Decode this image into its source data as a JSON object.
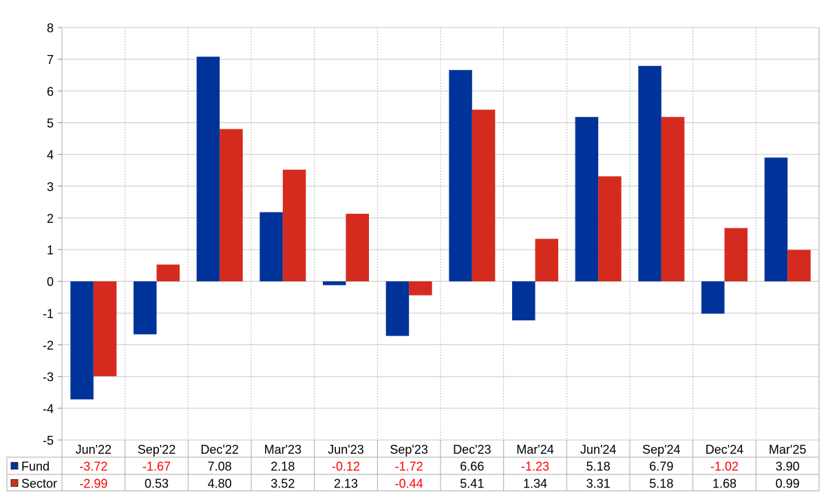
{
  "chart_data": {
    "type": "bar",
    "categories": [
      "Jun'22",
      "Sep'22",
      "Dec'22",
      "Mar'23",
      "Jun'23",
      "Sep'23",
      "Dec'23",
      "Mar'24",
      "Jun'24",
      "Sep'24",
      "Dec'24",
      "Mar'25"
    ],
    "series": [
      {
        "name": "Fund",
        "color": "#003399",
        "values": [
          -3.72,
          -1.67,
          7.08,
          2.18,
          -0.12,
          -1.72,
          6.66,
          -1.23,
          5.18,
          6.79,
          -1.02,
          3.9
        ],
        "labels": [
          "-3.72",
          "-1.67",
          "7.08",
          "2.18",
          "-0.12",
          "-1.72",
          "6.66",
          "-1.23",
          "5.18",
          "6.79",
          "-1.02",
          "3.90"
        ]
      },
      {
        "name": "Sector",
        "color": "#d52b1e",
        "values": [
          -2.99,
          0.53,
          4.8,
          3.52,
          2.13,
          -0.44,
          5.41,
          1.34,
          3.31,
          5.18,
          1.68,
          0.99
        ],
        "labels": [
          "-2.99",
          "0.53",
          "4.80",
          "3.52",
          "2.13",
          "-0.44",
          "5.41",
          "1.34",
          "3.31",
          "5.18",
          "1.68",
          "0.99"
        ]
      }
    ],
    "ylim": [
      -5,
      8
    ],
    "yticks": [
      "-5",
      "-4",
      "-3",
      "-2",
      "-1",
      "0",
      "1",
      "2",
      "3",
      "4",
      "5",
      "6",
      "7",
      "8"
    ],
    "title": "",
    "xlabel": "",
    "ylabel": "",
    "grid": true,
    "legend": "bottom-left data table",
    "negative_label_color": "#ff0000"
  }
}
